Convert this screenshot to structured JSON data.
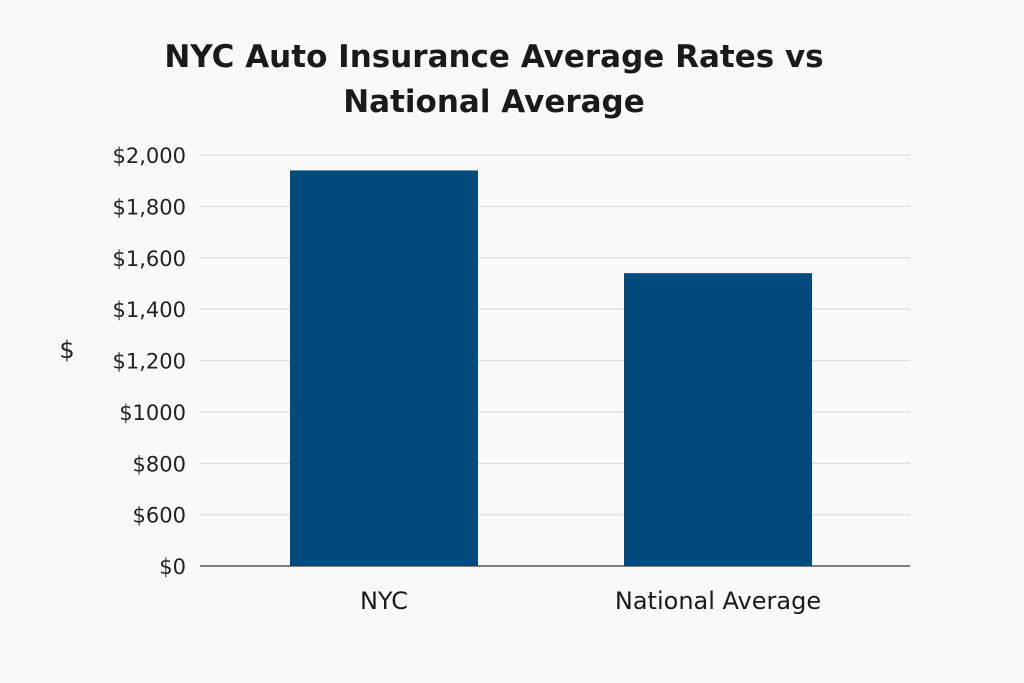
{
  "chart_data": {
    "type": "bar",
    "title_lines": [
      "NYC Auto Insurance Average Rates vs",
      "National Average"
    ],
    "xlabel": "",
    "ylabel": "$",
    "categories": [
      "NYC",
      "National Average"
    ],
    "values": [
      1940,
      1540
    ],
    "y_ticks": [
      0,
      600,
      800,
      1000,
      1200,
      1400,
      1600,
      1800,
      2000
    ],
    "y_tick_labels": [
      "$0",
      "$600",
      "$800",
      "$1000",
      "$1,200",
      "$1,400",
      "$1,600",
      "$1,800",
      "$2,000"
    ],
    "ylim": [
      0,
      2000
    ],
    "grid": true,
    "bar_color": "#034a7c",
    "grid_color": "#dddddd",
    "axis_color": "#555555"
  }
}
